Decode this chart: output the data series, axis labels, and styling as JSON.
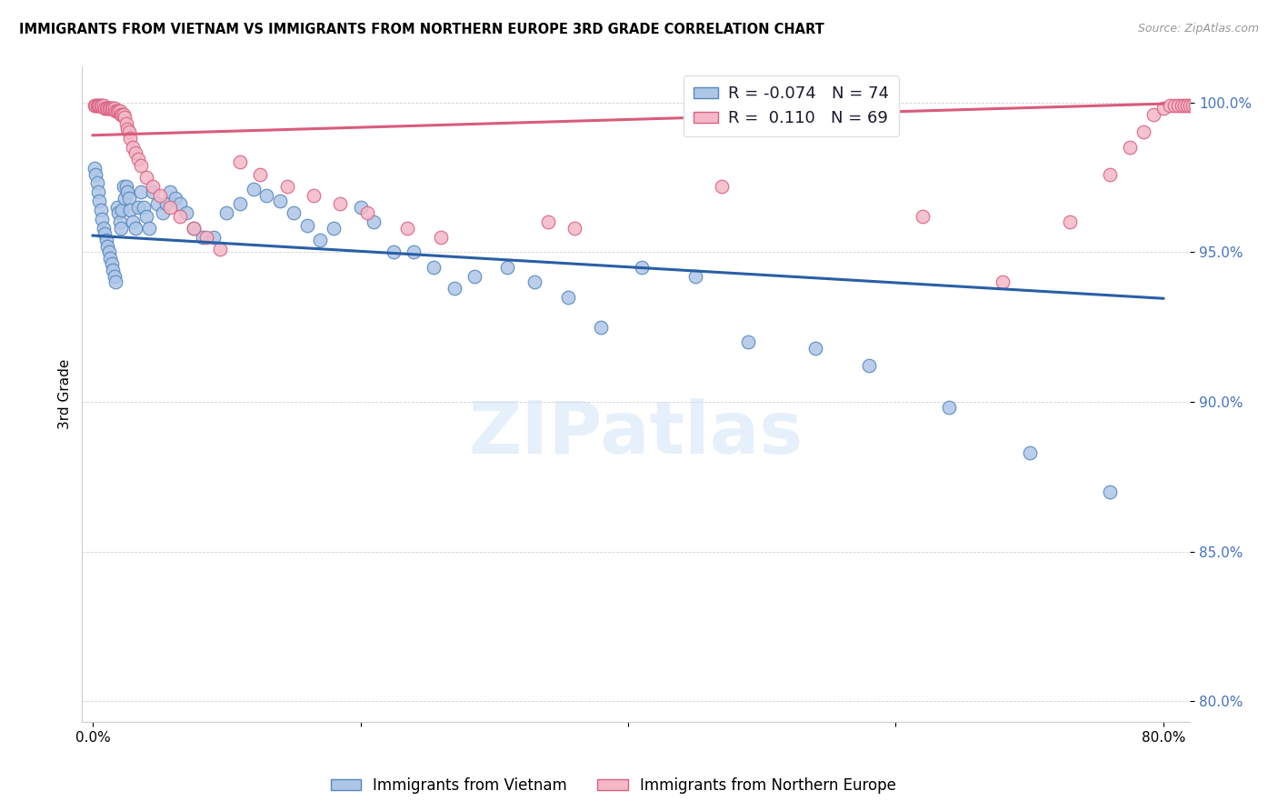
{
  "title": "IMMIGRANTS FROM VIETNAM VS IMMIGRANTS FROM NORTHERN EUROPE 3RD GRADE CORRELATION CHART",
  "source": "Source: ZipAtlas.com",
  "ylabel": "3rd Grade",
  "xlim": [
    -0.008,
    0.82
  ],
  "ylim": [
    0.793,
    1.012
  ],
  "yticks": [
    0.8,
    0.85,
    0.9,
    0.95,
    1.0
  ],
  "ytick_labels": [
    "80.0%",
    "85.0%",
    "90.0%",
    "95.0%",
    "100.0%"
  ],
  "xticks": [
    0.0,
    0.2,
    0.4,
    0.6,
    0.8
  ],
  "xtick_labels": [
    "0.0%",
    "",
    "",
    "",
    "80.0%"
  ],
  "blue_color": "#aec6e8",
  "blue_edge_color": "#5588bb",
  "pink_color": "#f4b8c8",
  "pink_edge_color": "#d96080",
  "legend_blue_label": "Immigrants from Vietnam",
  "legend_pink_label": "Immigrants from Northern Europe",
  "R_blue": -0.074,
  "N_blue": 74,
  "R_pink": 0.11,
  "N_pink": 69,
  "watermark": "ZIPatlas",
  "blue_line_x": [
    0.0,
    0.8
  ],
  "blue_line_y": [
    0.9555,
    0.9345
  ],
  "pink_line_x": [
    0.0,
    0.8
  ],
  "pink_line_y": [
    0.989,
    0.9995
  ],
  "blue_x": [
    0.001,
    0.002,
    0.003,
    0.004,
    0.005,
    0.006,
    0.007,
    0.008,
    0.009,
    0.01,
    0.011,
    0.012,
    0.013,
    0.014,
    0.015,
    0.016,
    0.017,
    0.018,
    0.019,
    0.02,
    0.021,
    0.022,
    0.023,
    0.024,
    0.025,
    0.026,
    0.027,
    0.028,
    0.03,
    0.032,
    0.034,
    0.036,
    0.038,
    0.04,
    0.042,
    0.045,
    0.048,
    0.052,
    0.055,
    0.058,
    0.062,
    0.065,
    0.07,
    0.075,
    0.082,
    0.09,
    0.1,
    0.11,
    0.12,
    0.13,
    0.14,
    0.15,
    0.16,
    0.17,
    0.18,
    0.2,
    0.21,
    0.225,
    0.24,
    0.255,
    0.27,
    0.285,
    0.31,
    0.33,
    0.355,
    0.38,
    0.41,
    0.45,
    0.49,
    0.54,
    0.58,
    0.64,
    0.7,
    0.76
  ],
  "blue_y": [
    0.978,
    0.976,
    0.973,
    0.97,
    0.967,
    0.964,
    0.961,
    0.958,
    0.956,
    0.954,
    0.952,
    0.95,
    0.948,
    0.946,
    0.944,
    0.942,
    0.94,
    0.965,
    0.963,
    0.96,
    0.958,
    0.964,
    0.972,
    0.968,
    0.972,
    0.97,
    0.968,
    0.964,
    0.96,
    0.958,
    0.965,
    0.97,
    0.965,
    0.962,
    0.958,
    0.97,
    0.966,
    0.963,
    0.966,
    0.97,
    0.968,
    0.966,
    0.963,
    0.958,
    0.955,
    0.955,
    0.963,
    0.966,
    0.971,
    0.969,
    0.967,
    0.963,
    0.959,
    0.954,
    0.958,
    0.965,
    0.96,
    0.95,
    0.95,
    0.945,
    0.938,
    0.942,
    0.945,
    0.94,
    0.935,
    0.925,
    0.945,
    0.942,
    0.92,
    0.918,
    0.912,
    0.898,
    0.883,
    0.87
  ],
  "pink_x": [
    0.001,
    0.002,
    0.003,
    0.004,
    0.005,
    0.006,
    0.007,
    0.008,
    0.009,
    0.01,
    0.011,
    0.012,
    0.013,
    0.014,
    0.015,
    0.016,
    0.017,
    0.018,
    0.019,
    0.02,
    0.021,
    0.022,
    0.023,
    0.024,
    0.025,
    0.026,
    0.027,
    0.028,
    0.03,
    0.032,
    0.034,
    0.036,
    0.04,
    0.045,
    0.05,
    0.058,
    0.065,
    0.075,
    0.085,
    0.095,
    0.11,
    0.125,
    0.145,
    0.165,
    0.185,
    0.205,
    0.235,
    0.26,
    0.34,
    0.36,
    0.47,
    0.62,
    0.68,
    0.73,
    0.76,
    0.775,
    0.785,
    0.793,
    0.8,
    0.805,
    0.808,
    0.811,
    0.814,
    0.816,
    0.818,
    0.82,
    0.822,
    0.824,
    0.826
  ],
  "pink_y": [
    0.999,
    0.999,
    0.999,
    0.999,
    0.999,
    0.999,
    0.999,
    0.999,
    0.998,
    0.998,
    0.998,
    0.998,
    0.998,
    0.998,
    0.998,
    0.998,
    0.997,
    0.997,
    0.997,
    0.997,
    0.996,
    0.996,
    0.996,
    0.995,
    0.993,
    0.991,
    0.99,
    0.988,
    0.985,
    0.983,
    0.981,
    0.979,
    0.975,
    0.972,
    0.969,
    0.965,
    0.962,
    0.958,
    0.955,
    0.951,
    0.98,
    0.976,
    0.972,
    0.969,
    0.966,
    0.963,
    0.958,
    0.955,
    0.96,
    0.958,
    0.972,
    0.962,
    0.94,
    0.96,
    0.976,
    0.985,
    0.99,
    0.996,
    0.998,
    0.999,
    0.999,
    0.999,
    0.999,
    0.999,
    0.999,
    0.999,
    0.999,
    0.999,
    0.999
  ]
}
